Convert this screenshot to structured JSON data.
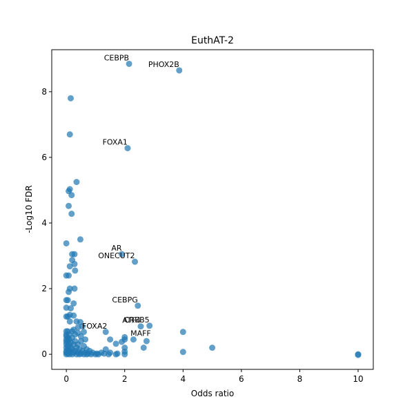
{
  "chart_data": {
    "type": "scatter",
    "title": "EuthAT-2",
    "x_label": "Odds ratio",
    "y_label": "-Log10 FDR",
    "color": "#1f77b4",
    "x": [
      2.15,
      3.87,
      0.15,
      0.12,
      2.1,
      0.35,
      0.12,
      0.08,
      0.18,
      0.08,
      0.18,
      0.48,
      0,
      1.9,
      0.2,
      0.28,
      2.35,
      0.2,
      0.28,
      0.12,
      0.3,
      0,
      0.08,
      0.12,
      0.28,
      0.08,
      0,
      0.05,
      0.25,
      0.15,
      0,
      2.45,
      0.12,
      0.25,
      0,
      0.05,
      0.12,
      0.35,
      0.48,
      0.55,
      2.55,
      2.85,
      0.4,
      0.25,
      0,
      0.05,
      4,
      1.35,
      0.6,
      2,
      2,
      1.9,
      2.3,
      2.75,
      1.5,
      1.7,
      2.65,
      5,
      4,
      10,
      10,
      0,
      0,
      0,
      0,
      0,
      0,
      0,
      0,
      0,
      0.05,
      0.05,
      0.05,
      0.05,
      0.05,
      0.1,
      0.1,
      0.1,
      0.1,
      0.1,
      0.15,
      0.15,
      0.15,
      0.2,
      0.2,
      0.2,
      0.25,
      0.25,
      0.3,
      0.3,
      0.35,
      0.35,
      0.4,
      0.4,
      0.45,
      0.45,
      0.5,
      0.5,
      0.55,
      0.6,
      0.6,
      0.65,
      0.7,
      0.7,
      0.75,
      0.8,
      0.85,
      0.9,
      1.0,
      1.05,
      1.1,
      1.2,
      1.3,
      1.35,
      1.45,
      1.5,
      1.7,
      1.75,
      2.0,
      2.0,
      2.0,
      0.3,
      0.5,
      0.65,
      0.2,
      0.4
    ],
    "values": [
      8.85,
      8.65,
      7.8,
      6.7,
      6.28,
      5.25,
      5.03,
      4.97,
      4.85,
      4.52,
      4.28,
      3.5,
      3.38,
      3.05,
      3.05,
      3.05,
      2.82,
      2.87,
      2.75,
      2.68,
      2.55,
      2.4,
      2.4,
      2.0,
      2.0,
      1.9,
      1.65,
      1.65,
      1.55,
      1.4,
      1.42,
      1.48,
      1.2,
      1.18,
      1.15,
      1.15,
      1.0,
      1.0,
      0.98,
      0.85,
      0.85,
      0.87,
      0.82,
      0.75,
      0.7,
      0.7,
      0.68,
      0.68,
      0.68,
      0.52,
      0.45,
      0.38,
      0.45,
      0.4,
      0.45,
      0.32,
      0.2,
      0.2,
      0.07,
      0,
      -0.02,
      0,
      0.05,
      0.1,
      0.2,
      0.3,
      0.38,
      0.45,
      0.55,
      0.6,
      0.02,
      0.15,
      0.25,
      0.4,
      0.5,
      0,
      0.1,
      0.3,
      0.45,
      0.6,
      0.05,
      0.2,
      0.35,
      0,
      0.15,
      0.5,
      0.05,
      0.3,
      0.1,
      0.4,
      0,
      0.2,
      0.05,
      0.3,
      0,
      0.15,
      0.02,
      0.4,
      0.1,
      0,
      0.25,
      0.05,
      0,
      0.15,
      0.02,
      0.1,
      0,
      0.05,
      0,
      0.02,
      0,
      0.05,
      0.02,
      0.15,
      0,
      0.05,
      0,
      0.02,
      0.2,
      0.08,
      0,
      0.6,
      0.55,
      0.45,
      0.7,
      0.65
    ],
    "annotations": [
      {
        "text": "CEBPB",
        "x": 2.15,
        "y": 8.85
      },
      {
        "text": "PHOX2B",
        "x": 3.87,
        "y": 8.65
      },
      {
        "text": "FOXA1",
        "x": 2.1,
        "y": 6.28
      },
      {
        "text": "AR",
        "x": 1.9,
        "y": 3.05
      },
      {
        "text": "ONECUT2",
        "x": 2.35,
        "y": 2.82
      },
      {
        "text": "CEBPG",
        "x": 2.45,
        "y": 1.48
      },
      {
        "text": "ATF4",
        "x": 2.55,
        "y": 0.85
      },
      {
        "text": "CREB5",
        "x": 2.85,
        "y": 0.87
      },
      {
        "text": "FOXA2",
        "x": 1.4,
        "y": 0.68
      },
      {
        "text": "MAFF",
        "x": 2.9,
        "y": 0.45
      }
    ],
    "xlim": [
      -0.5,
      10.52
    ],
    "ylim": [
      -0.46,
      9.28
    ],
    "xticks": [
      0,
      2,
      4,
      6,
      8,
      10
    ],
    "yticks": [
      0,
      2,
      4,
      6,
      8
    ]
  }
}
